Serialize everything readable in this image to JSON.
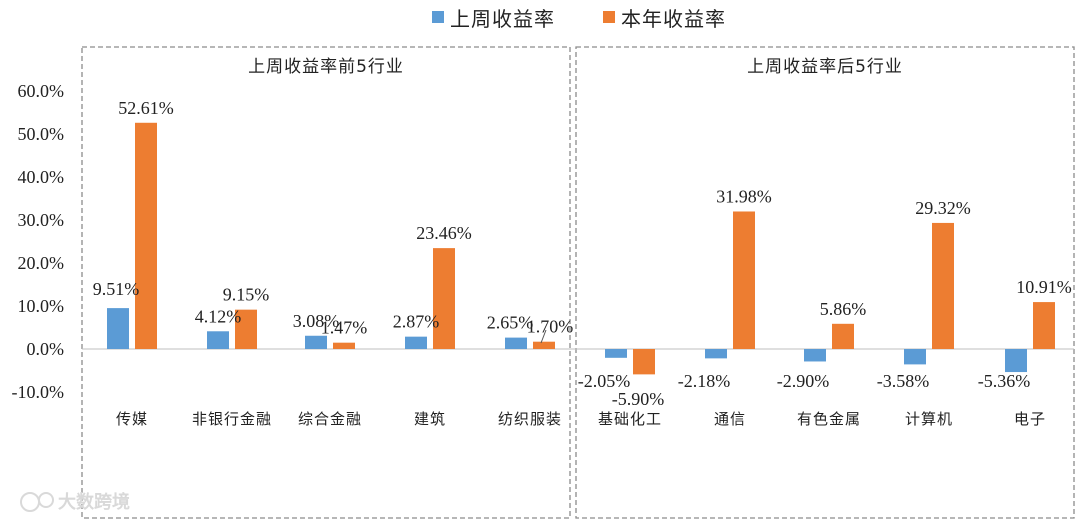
{
  "chart_data": {
    "type": "bar",
    "legend": {
      "position": "top-center",
      "series": [
        {
          "name": "上周收益率",
          "color": "#5B9BD5"
        },
        {
          "name": "本年收益率",
          "color": "#ED7D31"
        }
      ]
    },
    "ylim": [
      -10,
      60
    ],
    "yticks": [
      "-10.0%",
      "0.0%",
      "10.0%",
      "20.0%",
      "30.0%",
      "40.0%",
      "50.0%",
      "60.0%"
    ],
    "panels": [
      {
        "title": "上周收益率前5行业",
        "categories": [
          "传媒",
          "非银行金融",
          "综合金融",
          "建筑",
          "纺织服装"
        ],
        "series": [
          {
            "name": "上周收益率",
            "values": [
              9.51,
              4.12,
              3.08,
              2.87,
              2.65
            ],
            "labels": [
              "9.51%",
              "4.12%",
              "3.08%",
              "2.87%",
              "2.65%"
            ]
          },
          {
            "name": "本年收益率",
            "values": [
              52.61,
              9.15,
              1.47,
              23.46,
              1.7
            ],
            "labels": [
              "52.61%",
              "9.15%",
              "1.47%",
              "23.46%",
              "1.70%"
            ]
          }
        ]
      },
      {
        "title": "上周收益率后5行业",
        "categories": [
          "基础化工",
          "通信",
          "有色金属",
          "计算机",
          "电子"
        ],
        "series": [
          {
            "name": "上周收益率",
            "values": [
              -2.05,
              -2.18,
              -2.9,
              -3.58,
              -5.36
            ],
            "labels": [
              "-2.05%",
              "-2.18%",
              "-2.90%",
              "-3.58%",
              "-5.36%"
            ]
          },
          {
            "name": "本年收益率",
            "values": [
              -5.9,
              31.98,
              5.86,
              29.32,
              10.91
            ],
            "labels": [
              "-5.90%",
              "31.98%",
              "5.86%",
              "29.32%",
              "10.91%"
            ]
          }
        ]
      }
    ]
  },
  "watermark": "大数跨境"
}
